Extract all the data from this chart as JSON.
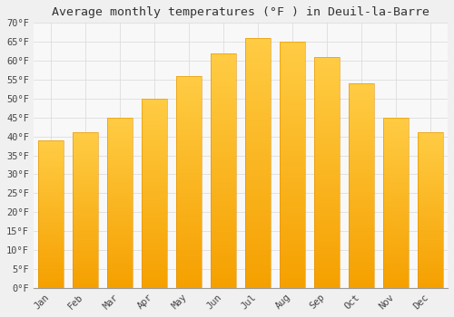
{
  "title": "Average monthly temperatures (°F ) in Deuil-la-Barre",
  "months": [
    "Jan",
    "Feb",
    "Mar",
    "Apr",
    "May",
    "Jun",
    "Jul",
    "Aug",
    "Sep",
    "Oct",
    "Nov",
    "Dec"
  ],
  "values": [
    39,
    41,
    45,
    50,
    56,
    62,
    66,
    65,
    61,
    54,
    45,
    41
  ],
  "bar_color_top": "#FFCC44",
  "bar_color_bottom": "#F5A000",
  "bar_edge_color": "#E09000",
  "background_color": "#F0F0F0",
  "plot_bg_color": "#F8F8F8",
  "grid_color": "#DDDDDD",
  "ylim": [
    0,
    70
  ],
  "yticks": [
    0,
    5,
    10,
    15,
    20,
    25,
    30,
    35,
    40,
    45,
    50,
    55,
    60,
    65,
    70
  ],
  "ylabel_suffix": "°F",
  "title_fontsize": 9.5,
  "tick_fontsize": 7.5,
  "font_family": "monospace"
}
